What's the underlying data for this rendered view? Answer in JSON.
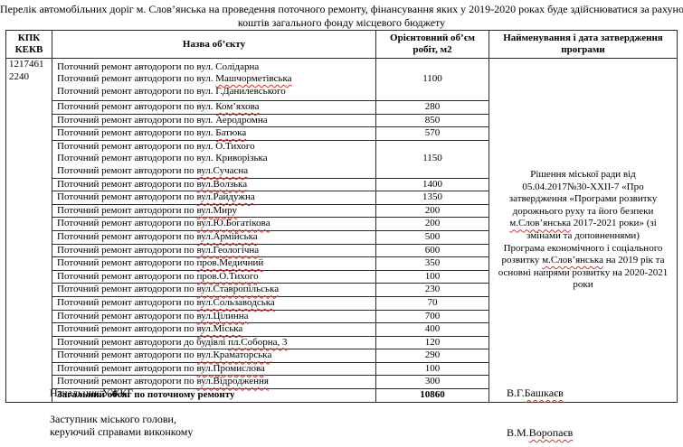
{
  "title": {
    "line1": "Перелік автомобільних доріг м. Слов’янська  на проведення поточного ремонту, фінансування яких у 2019-2020 роках буде здійснюватися за рахунок",
    "line2": "коштів загального фонду місцевого бюджету"
  },
  "table": {
    "headers": {
      "kpk": "КПК\nКЕКВ",
      "name": "Назва об’єкту",
      "volume": "Орієнтовний об’єм\nробіт, м2",
      "program": "Найменування і дата затвердження\nпрограми"
    },
    "kpk_value": "1217461\n2240",
    "groups": [
      {
        "lines": [
          {
            "pre": "Поточний ремонт автодороги по вул. ",
            "name": "Солідарна",
            "sp": false
          },
          {
            "pre": "Поточний ремонт автодороги по вул. ",
            "name": "Машчорметівська",
            "sp": true
          },
          {
            "pre": "Поточний ремонт автодороги по вул. ",
            "name": "Г.Данилевського",
            "sp": false
          }
        ],
        "value": "1100"
      },
      {
        "lines": [
          {
            "pre": "Поточний ремонт автодороги по вул. ",
            "name": "Ком’яхова",
            "sp": true
          }
        ],
        "value": "280"
      },
      {
        "lines": [
          {
            "pre": "Поточний ремонт автодороги по вул. ",
            "name": "Аеродромна",
            "sp": false
          }
        ],
        "value": "850"
      },
      {
        "lines": [
          {
            "pre": "Поточний ремонт автодороги по вул. ",
            "name": "Батюка",
            "sp": true
          }
        ],
        "value": "570"
      },
      {
        "lines": [
          {
            "pre": "Поточний ремонт автодороги по вул. ",
            "name": "О.Тихого",
            "sp": false
          },
          {
            "pre": "Поточний ремонт автодороги по вул. ",
            "name": "Криворізька",
            "sp": false
          },
          {
            "pre": "Поточний ремонт автодороги по ",
            "name": "вул.Сучасна",
            "sp": true
          }
        ],
        "value": "1150"
      },
      {
        "lines": [
          {
            "pre": "Поточний ремонт автодороги по ",
            "name": "вул.Волзька",
            "sp": true
          }
        ],
        "value": "1400"
      },
      {
        "lines": [
          {
            "pre": "Поточний ремонт автодороги по ",
            "name": "вул.Райдужна",
            "sp": true
          }
        ],
        "value": "1350"
      },
      {
        "lines": [
          {
            "pre": "Поточний ремонт автодороги по ",
            "name": "вул.Миру",
            "sp": true
          }
        ],
        "value": "200"
      },
      {
        "lines": [
          {
            "pre": "Поточний ремонт автодороги по ",
            "name": "вул.Ю.Богатікова",
            "sp": true
          }
        ],
        "value": "200"
      },
      {
        "lines": [
          {
            "pre": "Поточний ремонт автодороги по ",
            "name": "вул.Армійська",
            "sp": true
          }
        ],
        "value": "500"
      },
      {
        "lines": [
          {
            "pre": "Поточний ремонт автодороги по ",
            "name": "вул.Геологічна",
            "sp": true
          }
        ],
        "value": "600"
      },
      {
        "lines": [
          {
            "pre": "Поточний ремонт автодороги по ",
            "name": "пров.Медичний",
            "sp": true
          }
        ],
        "value": "350"
      },
      {
        "lines": [
          {
            "pre": "Поточний ремонт автодороги по ",
            "name": "пров.О.Тихого",
            "sp": true
          }
        ],
        "value": "100"
      },
      {
        "lines": [
          {
            "pre": "Поточний ремонт автодороги по ",
            "name": "вул.Ставропільська",
            "sp": true
          }
        ],
        "value": "230"
      },
      {
        "lines": [
          {
            "pre": "Поточний ремонт автодороги по ",
            "name": "вул.Сользаводська",
            "sp": true
          }
        ],
        "value": "70"
      },
      {
        "lines": [
          {
            "pre": "Поточний ремонт автодороги по ",
            "name": "вул.Цілинна",
            "sp": true
          }
        ],
        "value": "700"
      },
      {
        "lines": [
          {
            "pre": "Поточний ремонт автодороги по ",
            "name": "вул.Міська",
            "sp": true
          }
        ],
        "value": "400"
      },
      {
        "lines": [
          {
            "pre": "Поточний ремонт автодороги до будівлі ",
            "name": "пл.Соборна, 3",
            "sp": true
          }
        ],
        "value": "120"
      },
      {
        "lines": [
          {
            "pre": "Поточний ремонт автодороги по ",
            "name": "вул.Краматорська",
            "sp": true
          }
        ],
        "value": "290"
      },
      {
        "lines": [
          {
            "pre": "Поточний ремонт автодороги по ",
            "name": "вул.Промислова",
            "sp": true
          }
        ],
        "value": "100"
      },
      {
        "lines": [
          {
            "pre": "Поточний ремонт автодороги по ",
            "name": "вул.Відродження",
            "sp": true
          }
        ],
        "value": "300"
      }
    ],
    "total": {
      "label": "Загальний обсяг по поточному ремонту",
      "value": "10860"
    },
    "program_segments": [
      {
        "text": "Рішення міської ради від 05.04.2017№30-XXII-7 «Про затвердження «Програми розвитку дорожнього руху та його безпеки ",
        "sp": false
      },
      {
        "text": "м.Слов’янська",
        "sp": true
      },
      {
        "text": "  2017-2021 роки» (зі змінами та доповненнями)\n",
        "sp": false
      },
      {
        "text": "Програма економічного і соціального розвитку ",
        "sp": false
      },
      {
        "text": "м.Слов’янська",
        "sp": true
      },
      {
        "text": " на 2019 рік та основні напрями розвитку  на 2020-2021 роки",
        "sp": false
      }
    ]
  },
  "footer": {
    "role1": "Начальник УЖКГ",
    "sig1_pre": "В.Г.",
    "sig1_name": "Башкаєв",
    "role2_line1": "Заступник міського голови,",
    "role2_line2": "керуючий справами виконкому",
    "sig2_pre": "В.М.",
    "sig2_name": "Воропаєв"
  },
  "colors": {
    "text": "#000000",
    "border": "#2b2b2b",
    "spellcheck_underline": "#d03428",
    "background": "#ffffff"
  }
}
